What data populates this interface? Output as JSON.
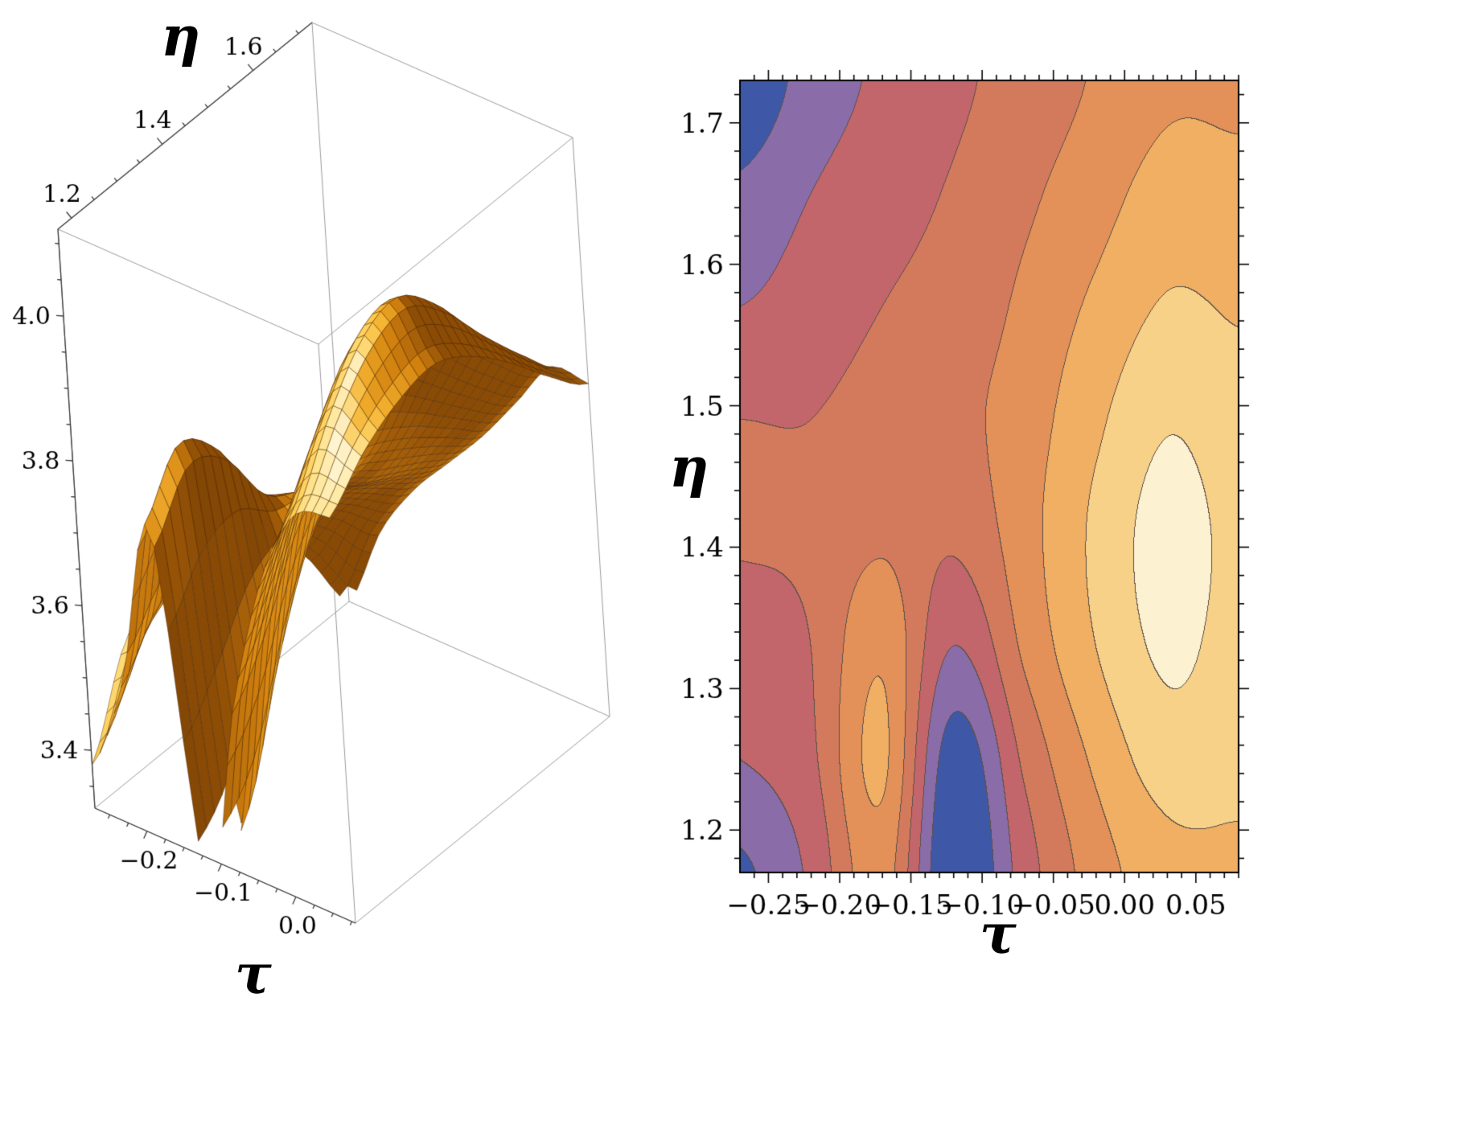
{
  "figure": {
    "background": "#ffffff",
    "description": "Two-panel mathematical figure: left is a 3D surface plot of a function of tau and eta, right is the corresponding filled contour plot of the same function."
  },
  "chart_data": [
    {
      "type": "surface3d",
      "title": "",
      "xlabel": "τ",
      "ylabel": "η",
      "zlabel": "",
      "x_range": [
        -0.27,
        0.08
      ],
      "y_range": [
        1.17,
        1.73
      ],
      "z_range": [
        3.32,
        4.12
      ],
      "clip_below": 3.33,
      "x_ticks": [
        -0.2,
        -0.1,
        0.0
      ],
      "x_tick_labels": [
        "−0.2",
        "−0.1",
        "0.0"
      ],
      "y_ticks": [
        1.2,
        1.4,
        1.6
      ],
      "y_tick_labels": [
        "1.2",
        "1.4",
        "1.6"
      ],
      "z_ticks": [
        3.4,
        3.6,
        3.8,
        4.0
      ],
      "z_tick_labels": [
        "3.4",
        "3.6",
        "3.8",
        "4.0"
      ],
      "surface_color_ramp": {
        "positions": [
          0,
          0.25,
          0.5,
          0.7,
          0.85,
          1
        ],
        "colors": [
          "#4A2503",
          "#8F4E06",
          "#D3820F",
          "#F2AE2C",
          "#FFCF55",
          "#FFEFAF"
        ]
      },
      "mesh_line_color": "rgba(70,35,4,0.6)",
      "box_edge_color": "#999999",
      "axis_edge_color": "#3a3a3a",
      "grid": {
        "tau": [
          -0.27,
          -0.22,
          -0.17,
          -0.12,
          -0.07,
          -0.02,
          0.03,
          0.08
        ],
        "eta": [
          1.17,
          1.25,
          1.33,
          1.41,
          1.49,
          1.57,
          1.65,
          1.73
        ],
        "values": [
          [
            3.38,
            3.52,
            3.75,
            3.28,
            3.55,
            3.75,
            3.86,
            3.88
          ],
          [
            3.5,
            3.58,
            3.82,
            3.34,
            3.62,
            3.82,
            3.95,
            3.93
          ],
          [
            3.55,
            3.6,
            3.78,
            3.5,
            3.72,
            3.9,
            4.02,
            3.96
          ],
          [
            3.61,
            3.62,
            3.68,
            3.62,
            3.76,
            3.92,
            4.04,
            3.97
          ],
          [
            3.6,
            3.6,
            3.64,
            3.67,
            3.75,
            3.88,
            3.99,
            3.94
          ],
          [
            3.5,
            3.55,
            3.6,
            3.64,
            3.72,
            3.82,
            3.91,
            3.89
          ],
          [
            3.42,
            3.5,
            3.56,
            3.61,
            3.68,
            3.76,
            3.84,
            3.83
          ],
          [
            3.32,
            3.44,
            3.52,
            3.58,
            3.64,
            3.71,
            3.78,
            3.78
          ]
        ]
      }
    },
    {
      "type": "contour",
      "title": "",
      "xlabel": "τ",
      "ylabel": "η",
      "x_range": [
        -0.27,
        0.08
      ],
      "y_range": [
        1.17,
        1.73
      ],
      "x_ticks": [
        -0.25,
        -0.2,
        -0.15,
        -0.1,
        -0.05,
        0,
        0.05
      ],
      "x_tick_labels": [
        "−0.25",
        "−0.20",
        "−0.15",
        "−0.10",
        "−0.05",
        "0.00",
        "0.05"
      ],
      "y_ticks": [
        1.2,
        1.3,
        1.4,
        1.5,
        1.6,
        1.7
      ],
      "y_tick_labels": [
        "1.2",
        "1.3",
        "1.4",
        "1.5",
        "1.6",
        "1.7"
      ],
      "contour_levels": [
        3.4,
        3.5,
        3.6,
        3.7,
        3.8,
        3.9,
        4.0
      ],
      "band_colors": [
        "#3E58A7",
        "#8A6CA8",
        "#C2666B",
        "#D47A5C",
        "#E39158",
        "#F0AF63",
        "#F8D189",
        "#FCF2D2"
      ],
      "contour_line_color": "#5B5048",
      "frame_color": "#000000",
      "peak": {
        "tau": 0.03,
        "eta": 1.38,
        "value": 4.04
      }
    }
  ]
}
